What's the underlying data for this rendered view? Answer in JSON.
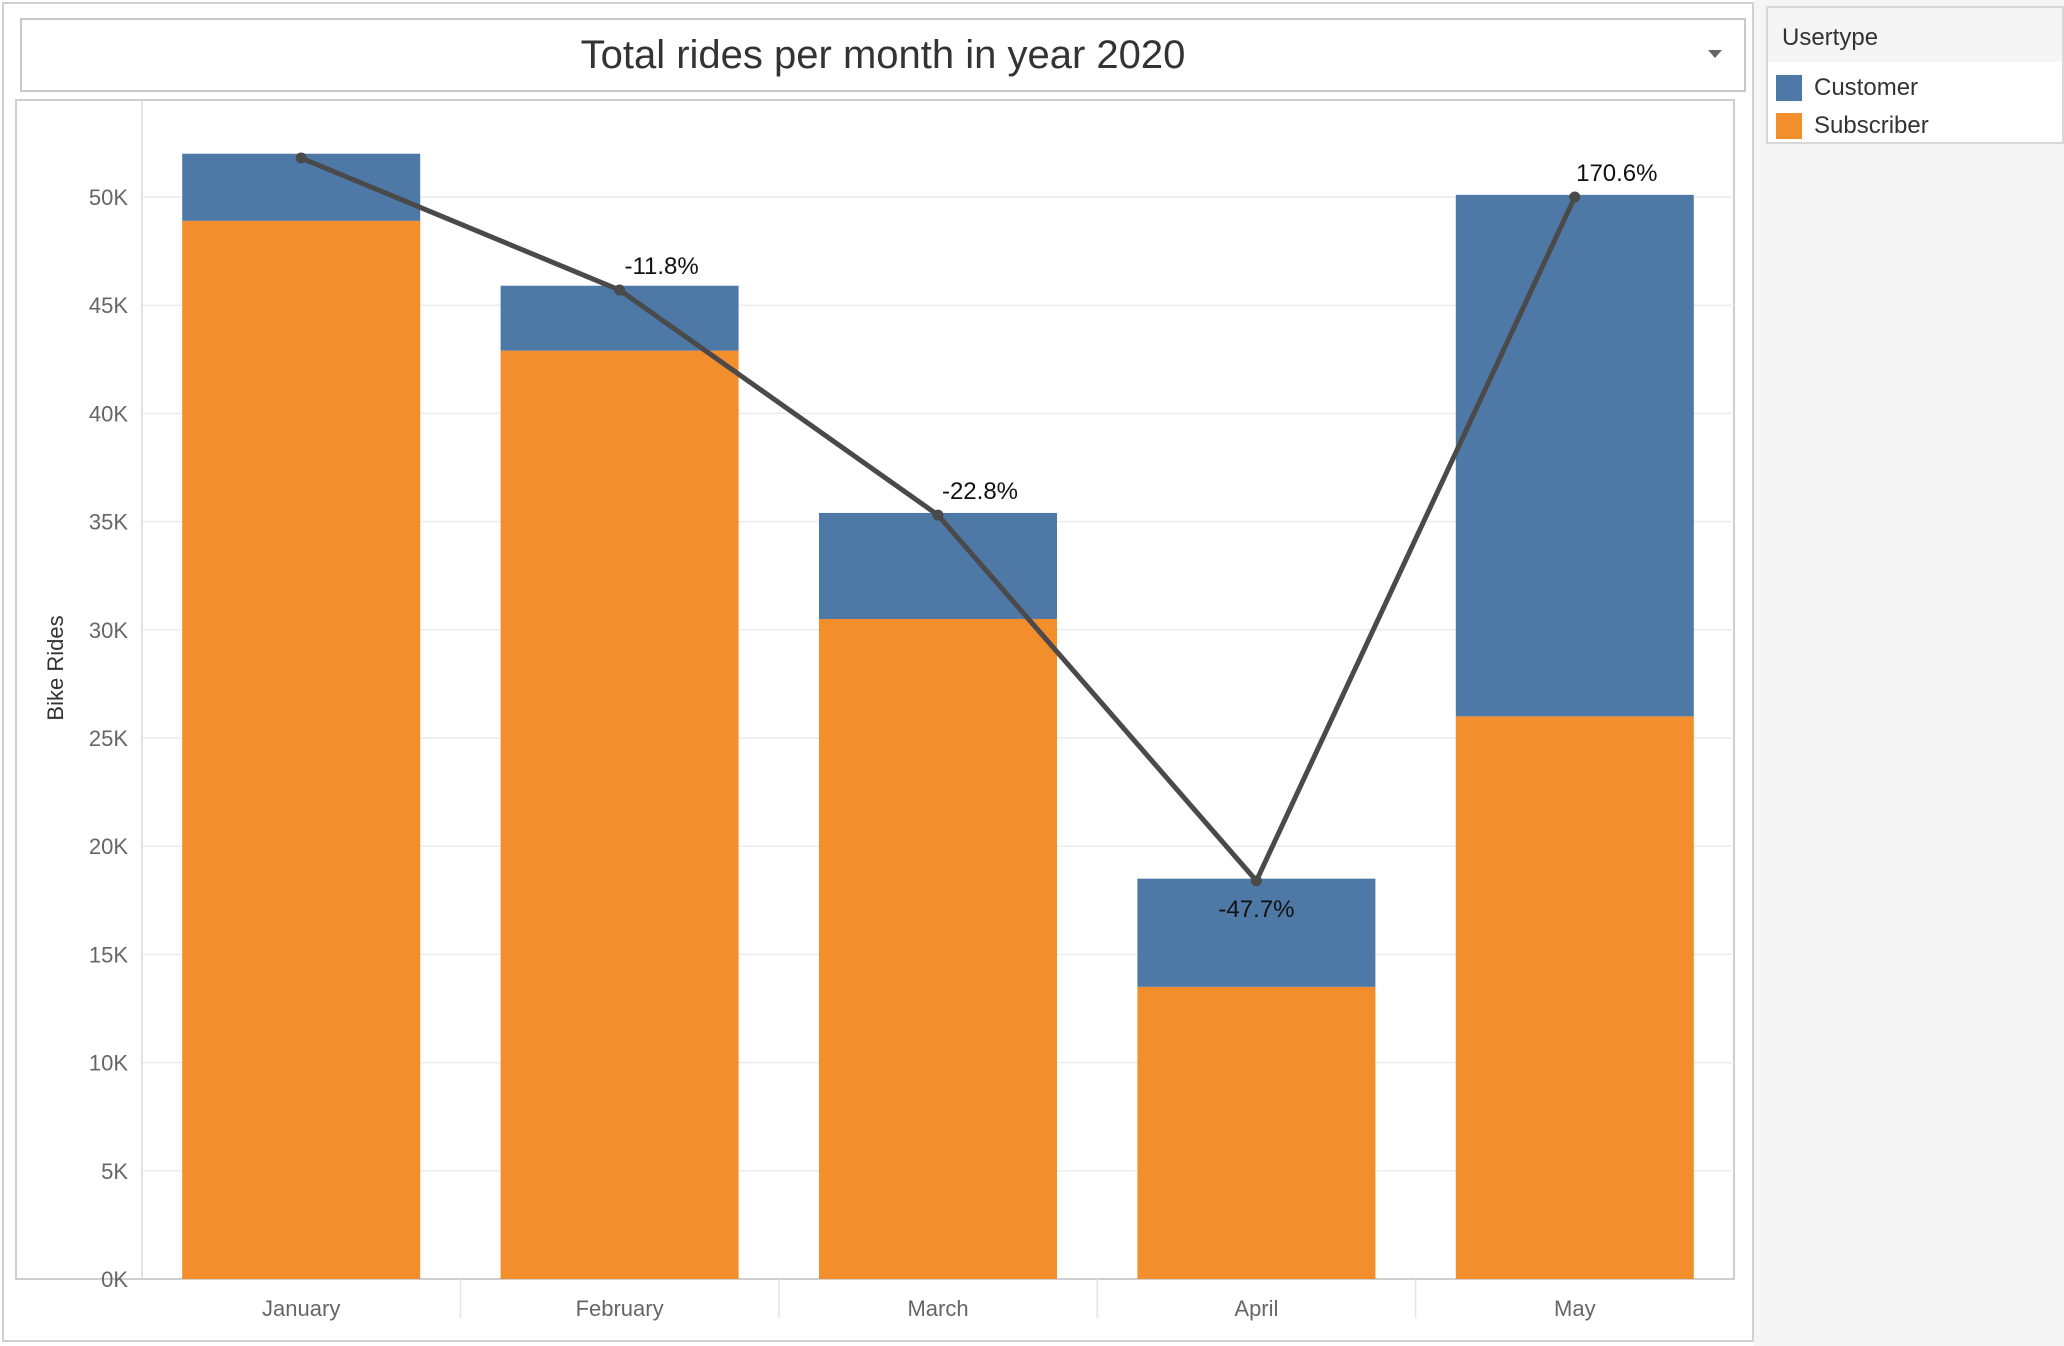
{
  "title": "Total rides per month in year 2020",
  "legend": {
    "title": "Usertype",
    "items": [
      {
        "label": "Customer",
        "color": "#4e79a7"
      },
      {
        "label": "Subscriber",
        "color": "#f28e2b"
      }
    ]
  },
  "chart_data": {
    "type": "bar",
    "stacked": true,
    "title": "Total rides per month in year 2020",
    "xlabel": "",
    "ylabel": "Bike Rides",
    "ylim": [
      0,
      55000
    ],
    "yticks": [
      0,
      5000,
      10000,
      15000,
      20000,
      25000,
      30000,
      35000,
      40000,
      45000,
      50000
    ],
    "ytick_labels": [
      "0K",
      "5K",
      "10K",
      "15K",
      "20K",
      "25K",
      "30K",
      "35K",
      "40K",
      "45K",
      "50K"
    ],
    "grid": true,
    "legend_position": "top-right",
    "categories": [
      "January",
      "February",
      "March",
      "April",
      "May"
    ],
    "series": [
      {
        "name": "Subscriber",
        "color": "#f28e2b",
        "values": [
          48900,
          42900,
          30500,
          13500,
          26000
        ]
      },
      {
        "name": "Customer",
        "color": "#4e79a7",
        "values": [
          3100,
          3000,
          4900,
          5000,
          24100
        ]
      }
    ],
    "totals": [
      52000,
      45900,
      35400,
      18500,
      50100
    ],
    "line": {
      "color": "#4a4a4a",
      "values": [
        51800,
        45700,
        35300,
        18400,
        50000
      ],
      "labels": [
        "",
        "-11.8%",
        "-22.8%",
        "-47.7%",
        "170.6%"
      ]
    }
  }
}
